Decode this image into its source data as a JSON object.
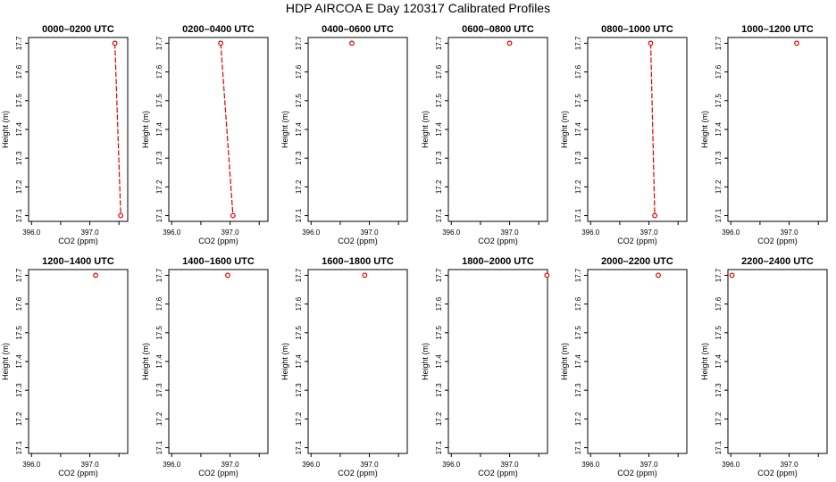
{
  "figure": {
    "title": "HDP AIRCOA E  Day 120317  Calibrated Profiles"
  },
  "colors": {
    "series": "#dd0000",
    "axis": "#000000",
    "background": "#ffffff"
  },
  "chart_data": [
    {
      "type": "line",
      "title": "0000–0200 UTC",
      "xlabel": "CO2 (ppm)",
      "ylabel": "Height (m)",
      "xlim": [
        395.95,
        397.65
      ],
      "ylim": [
        17.08,
        17.72
      ],
      "xticks": [
        396.0,
        396.5,
        397.0,
        397.5
      ],
      "xtick_labels": [
        "396.0",
        "",
        "397.0",
        ""
      ],
      "yticks": [
        17.1,
        17.2,
        17.3,
        17.4,
        17.5,
        17.6,
        17.7
      ],
      "ytick_labels": [
        "17.1",
        "17.2",
        "17.3",
        "17.4",
        "17.5",
        "17.6",
        "17.7"
      ],
      "grid": false,
      "points": [
        {
          "x": 397.43,
          "y": 17.7
        },
        {
          "x": 397.53,
          "y": 17.1
        }
      ]
    },
    {
      "type": "line",
      "title": "0200–0400 UTC",
      "xlabel": "CO2 (ppm)",
      "ylabel": "Height (m)",
      "xlim": [
        395.95,
        397.65
      ],
      "ylim": [
        17.08,
        17.72
      ],
      "xticks": [
        396.0,
        396.5,
        397.0,
        397.5
      ],
      "xtick_labels": [
        "396.0",
        "",
        "397.0",
        ""
      ],
      "yticks": [
        17.1,
        17.2,
        17.3,
        17.4,
        17.5,
        17.6,
        17.7
      ],
      "ytick_labels": [
        "17.1",
        "17.2",
        "17.3",
        "17.4",
        "17.5",
        "17.6",
        "17.7"
      ],
      "grid": false,
      "points": [
        {
          "x": 396.84,
          "y": 17.7
        },
        {
          "x": 397.05,
          "y": 17.1
        }
      ]
    },
    {
      "type": "scatter",
      "title": "0400–0600 UTC",
      "xlabel": "CO2 (ppm)",
      "ylabel": "Height (m)",
      "xlim": [
        395.95,
        397.65
      ],
      "ylim": [
        17.08,
        17.72
      ],
      "xticks": [
        396.0,
        396.5,
        397.0,
        397.5
      ],
      "xtick_labels": [
        "396.0",
        "",
        "397.0",
        ""
      ],
      "yticks": [
        17.1,
        17.2,
        17.3,
        17.4,
        17.5,
        17.6,
        17.7
      ],
      "ytick_labels": [
        "17.1",
        "17.2",
        "17.3",
        "17.4",
        "17.5",
        "17.6",
        "17.7"
      ],
      "grid": false,
      "points": [
        {
          "x": 396.7,
          "y": 17.7
        }
      ]
    },
    {
      "type": "scatter",
      "title": "0600–0800 UTC",
      "xlabel": "CO2 (ppm)",
      "ylabel": "Height (m)",
      "xlim": [
        395.95,
        397.65
      ],
      "ylim": [
        17.08,
        17.72
      ],
      "xticks": [
        396.0,
        396.5,
        397.0,
        397.5
      ],
      "xtick_labels": [
        "396.0",
        "",
        "397.0",
        ""
      ],
      "yticks": [
        17.1,
        17.2,
        17.3,
        17.4,
        17.5,
        17.6,
        17.7
      ],
      "ytick_labels": [
        "17.1",
        "17.2",
        "17.3",
        "17.4",
        "17.5",
        "17.6",
        "17.7"
      ],
      "grid": false,
      "points": [
        {
          "x": 397.0,
          "y": 17.7
        }
      ]
    },
    {
      "type": "line",
      "title": "0800–1000 UTC",
      "xlabel": "CO2 (ppm)",
      "ylabel": "Height (m)",
      "xlim": [
        395.95,
        397.65
      ],
      "ylim": [
        17.08,
        17.72
      ],
      "xticks": [
        396.0,
        396.5,
        397.0,
        397.5
      ],
      "xtick_labels": [
        "396.0",
        "",
        "397.0",
        ""
      ],
      "yticks": [
        17.1,
        17.2,
        17.3,
        17.4,
        17.5,
        17.6,
        17.7
      ],
      "ytick_labels": [
        "17.1",
        "17.2",
        "17.3",
        "17.4",
        "17.5",
        "17.6",
        "17.7"
      ],
      "grid": false,
      "points": [
        {
          "x": 397.03,
          "y": 17.7
        },
        {
          "x": 397.1,
          "y": 17.1
        }
      ]
    },
    {
      "type": "scatter",
      "title": "1000–1200 UTC",
      "xlabel": "CO2 (ppm)",
      "ylabel": "Height (m)",
      "xlim": [
        395.95,
        397.65
      ],
      "ylim": [
        17.08,
        17.72
      ],
      "xticks": [
        396.0,
        396.5,
        397.0,
        397.5
      ],
      "xtick_labels": [
        "396.0",
        "",
        "397.0",
        ""
      ],
      "yticks": [
        17.1,
        17.2,
        17.3,
        17.4,
        17.5,
        17.6,
        17.7
      ],
      "ytick_labels": [
        "17.1",
        "17.2",
        "17.3",
        "17.4",
        "17.5",
        "17.6",
        "17.7"
      ],
      "grid": false,
      "points": [
        {
          "x": 397.13,
          "y": 17.7
        }
      ]
    },
    {
      "type": "scatter",
      "title": "1200–1400 UTC",
      "xlabel": "CO2 (ppm)",
      "ylabel": "Height (m)",
      "xlim": [
        395.95,
        397.65
      ],
      "ylim": [
        17.08,
        17.72
      ],
      "xticks": [
        396.0,
        396.5,
        397.0,
        397.5
      ],
      "xtick_labels": [
        "396.0",
        "",
        "397.0",
        ""
      ],
      "yticks": [
        17.1,
        17.2,
        17.3,
        17.4,
        17.5,
        17.6,
        17.7
      ],
      "ytick_labels": [
        "17.1",
        "17.2",
        "17.3",
        "17.4",
        "17.5",
        "17.6",
        "17.7"
      ],
      "grid": false,
      "points": [
        {
          "x": 397.1,
          "y": 17.7
        }
      ]
    },
    {
      "type": "scatter",
      "title": "1400–1600 UTC",
      "xlabel": "CO2 (ppm)",
      "ylabel": "Height (m)",
      "xlim": [
        395.95,
        397.65
      ],
      "ylim": [
        17.08,
        17.72
      ],
      "xticks": [
        396.0,
        396.5,
        397.0,
        397.5
      ],
      "xtick_labels": [
        "396.0",
        "",
        "397.0",
        ""
      ],
      "yticks": [
        17.1,
        17.2,
        17.3,
        17.4,
        17.5,
        17.6,
        17.7
      ],
      "ytick_labels": [
        "17.1",
        "17.2",
        "17.3",
        "17.4",
        "17.5",
        "17.6",
        "17.7"
      ],
      "grid": false,
      "points": [
        {
          "x": 396.96,
          "y": 17.7
        }
      ]
    },
    {
      "type": "scatter",
      "title": "1600–1800 UTC",
      "xlabel": "CO2 (ppm)",
      "ylabel": "Height (m)",
      "xlim": [
        395.95,
        397.65
      ],
      "ylim": [
        17.08,
        17.72
      ],
      "xticks": [
        396.0,
        396.5,
        397.0,
        397.5
      ],
      "xtick_labels": [
        "396.0",
        "",
        "397.0",
        ""
      ],
      "yticks": [
        17.1,
        17.2,
        17.3,
        17.4,
        17.5,
        17.6,
        17.7
      ],
      "ytick_labels": [
        "17.1",
        "17.2",
        "17.3",
        "17.4",
        "17.5",
        "17.6",
        "17.7"
      ],
      "grid": false,
      "points": [
        {
          "x": 396.92,
          "y": 17.7
        }
      ]
    },
    {
      "type": "scatter",
      "title": "1800–2000 UTC",
      "xlabel": "CO2 (ppm)",
      "ylabel": "Height (m)",
      "xlim": [
        395.95,
        397.65
      ],
      "ylim": [
        17.08,
        17.72
      ],
      "xticks": [
        396.0,
        396.5,
        397.0,
        397.5
      ],
      "xtick_labels": [
        "396.0",
        "",
        "397.0",
        ""
      ],
      "yticks": [
        17.1,
        17.2,
        17.3,
        17.4,
        17.5,
        17.6,
        17.7
      ],
      "ytick_labels": [
        "17.1",
        "17.2",
        "17.3",
        "17.4",
        "17.5",
        "17.6",
        "17.7"
      ],
      "grid": false,
      "points": [
        {
          "x": 397.64,
          "y": 17.7
        }
      ]
    },
    {
      "type": "scatter",
      "title": "2000–2200 UTC",
      "xlabel": "CO2 (ppm)",
      "ylabel": "Height (m)",
      "xlim": [
        395.95,
        397.65
      ],
      "ylim": [
        17.08,
        17.72
      ],
      "xticks": [
        396.0,
        396.5,
        397.0,
        397.5
      ],
      "xtick_labels": [
        "396.0",
        "",
        "397.0",
        ""
      ],
      "yticks": [
        17.1,
        17.2,
        17.3,
        17.4,
        17.5,
        17.6,
        17.7
      ],
      "ytick_labels": [
        "17.1",
        "17.2",
        "17.3",
        "17.4",
        "17.5",
        "17.6",
        "17.7"
      ],
      "grid": false,
      "points": [
        {
          "x": 397.16,
          "y": 17.7
        }
      ]
    },
    {
      "type": "scatter",
      "title": "2200–2400 UTC",
      "xlabel": "CO2 (ppm)",
      "ylabel": "Height (m)",
      "xlim": [
        395.95,
        397.65
      ],
      "ylim": [
        17.08,
        17.72
      ],
      "xticks": [
        396.0,
        396.5,
        397.0,
        397.5
      ],
      "xtick_labels": [
        "396.0",
        "",
        "397.0",
        ""
      ],
      "yticks": [
        17.1,
        17.2,
        17.3,
        17.4,
        17.5,
        17.6,
        17.7
      ],
      "ytick_labels": [
        "17.1",
        "17.2",
        "17.3",
        "17.4",
        "17.5",
        "17.6",
        "17.7"
      ],
      "grid": false,
      "points": [
        {
          "x": 396.02,
          "y": 17.7
        }
      ]
    }
  ]
}
